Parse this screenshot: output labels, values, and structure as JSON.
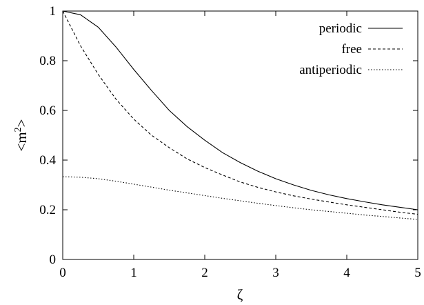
{
  "chart_data": {
    "type": "line",
    "title": "",
    "xlabel": "ζ",
    "ylabel": "<m²>",
    "ylabel_base": "<m",
    "ylabel_sup": "2",
    "ylabel_close": ">",
    "xlim": [
      0,
      5
    ],
    "ylim": [
      0,
      1
    ],
    "xticks": [
      0,
      1,
      2,
      3,
      4,
      5
    ],
    "xtick_labels": [
      "0",
      "1",
      "2",
      "3",
      "4",
      "5"
    ],
    "yticks": [
      0,
      0.2,
      0.4,
      0.6,
      0.8,
      1
    ],
    "ytick_labels": [
      "0",
      "0.2",
      "0.4",
      "0.6",
      "0.8",
      "1"
    ],
    "grid": false,
    "legend_position": "top-right",
    "series": [
      {
        "name": "periodic",
        "style": "solid",
        "color": "#000000",
        "x": [
          0,
          0.25,
          0.5,
          0.75,
          1.0,
          1.25,
          1.5,
          1.75,
          2.0,
          2.25,
          2.5,
          2.75,
          3.0,
          3.25,
          3.5,
          3.75,
          4.0,
          4.25,
          4.5,
          4.75,
          5.0
        ],
        "y": [
          1.0,
          0.985,
          0.935,
          0.855,
          0.765,
          0.68,
          0.6,
          0.535,
          0.48,
          0.43,
          0.39,
          0.355,
          0.325,
          0.3,
          0.278,
          0.26,
          0.245,
          0.232,
          0.22,
          0.21,
          0.2
        ]
      },
      {
        "name": "free",
        "style": "dashed",
        "color": "#000000",
        "x": [
          0,
          0.25,
          0.5,
          0.75,
          1.0,
          1.25,
          1.5,
          1.75,
          2.0,
          2.25,
          2.5,
          2.75,
          3.0,
          3.25,
          3.5,
          3.75,
          4.0,
          4.25,
          4.5,
          4.75,
          5.0
        ],
        "y": [
          1.0,
          0.86,
          0.745,
          0.645,
          0.565,
          0.5,
          0.45,
          0.405,
          0.37,
          0.34,
          0.312,
          0.29,
          0.272,
          0.256,
          0.243,
          0.231,
          0.22,
          0.21,
          0.2,
          0.19,
          0.182
        ]
      },
      {
        "name": "antiperiodic",
        "style": "dotted",
        "color": "#000000",
        "x": [
          0,
          0.25,
          0.5,
          0.75,
          1.0,
          1.25,
          1.5,
          1.75,
          2.0,
          2.25,
          2.5,
          2.75,
          3.0,
          3.25,
          3.5,
          3.75,
          4.0,
          4.25,
          4.5,
          4.75,
          5.0
        ],
        "y": [
          0.333,
          0.331,
          0.325,
          0.315,
          0.303,
          0.291,
          0.279,
          0.268,
          0.257,
          0.246,
          0.236,
          0.226,
          0.217,
          0.208,
          0.2,
          0.193,
          0.186,
          0.179,
          0.173,
          0.167,
          0.161
        ]
      }
    ]
  }
}
